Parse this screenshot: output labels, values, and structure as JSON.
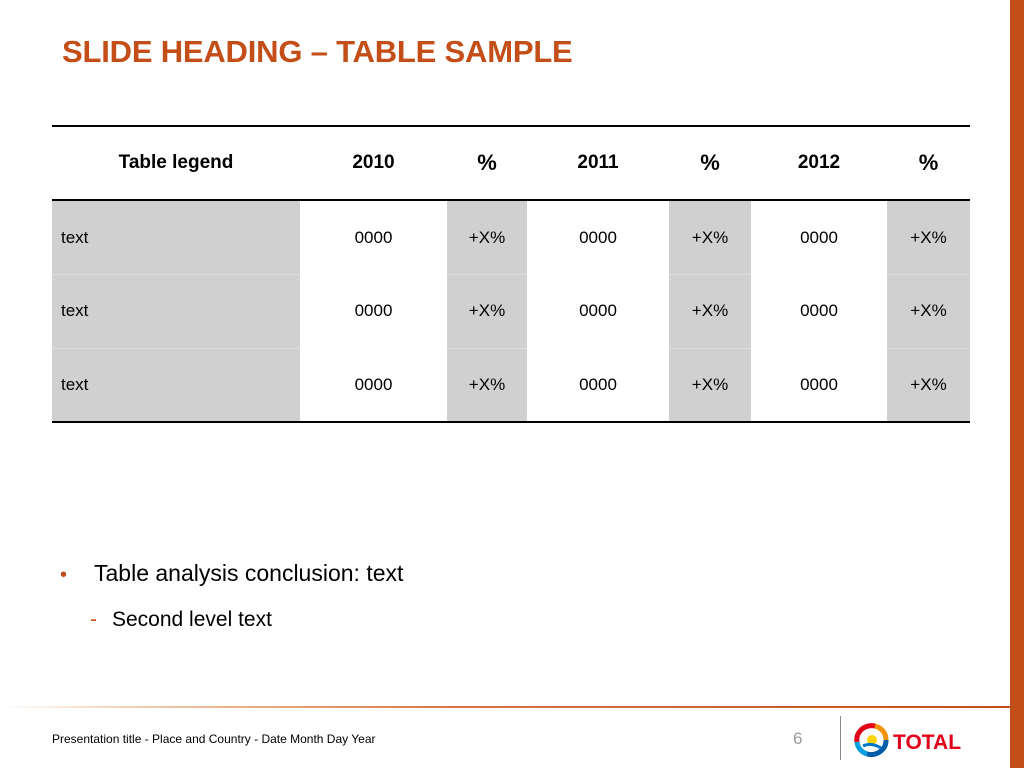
{
  "slide": {
    "heading": "SLIDE HEADING – TABLE SAMPLE",
    "page_number": "6",
    "footer": "Presentation title - Place and Country - Date Month Day Year"
  },
  "table": {
    "headers": [
      "Table legend",
      "2010",
      "%",
      "2011",
      "%",
      "2012",
      "%"
    ],
    "rows": [
      [
        "text",
        "0000",
        "+X%",
        "0000",
        "+X%",
        "0000",
        "+X%"
      ],
      [
        "text",
        "0000",
        "+X%",
        "0000",
        "+X%",
        "0000",
        "+X%"
      ],
      [
        "text",
        "0000",
        "+X%",
        "0000",
        "+X%",
        "0000",
        "+X%"
      ]
    ]
  },
  "bullets": {
    "level1": "Table analysis conclusion: text",
    "level1_marker": "•",
    "level2": "Second level text",
    "level2_marker": "-"
  },
  "logo": {
    "text": "TOTAL",
    "icon": "total-logo-icon"
  },
  "colors": {
    "accent": "#c34e18",
    "shade": "#d0d0d0"
  }
}
